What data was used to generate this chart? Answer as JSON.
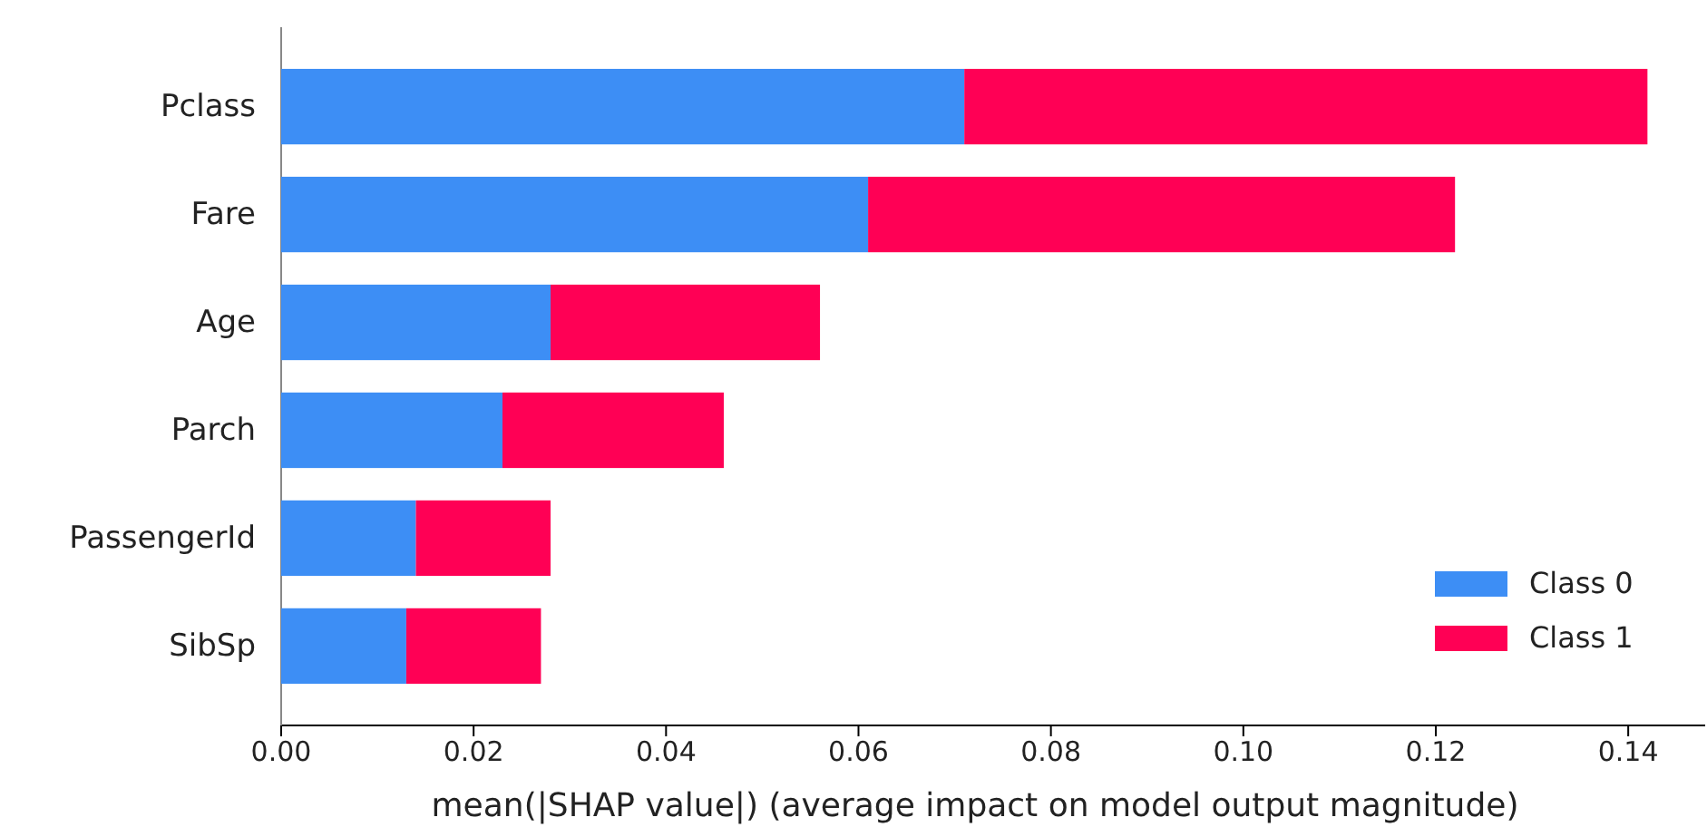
{
  "chart_data": {
    "type": "bar",
    "orientation": "horizontal",
    "stacked": true,
    "xlabel": "mean(|SHAP value|) (average impact on model output magnitude)",
    "categories": [
      "Pclass",
      "Fare",
      "Age",
      "Parch",
      "PassengerId",
      "SibSp"
    ],
    "series": [
      {
        "name": "Class 0",
        "color": "#3d8ef5",
        "values": [
          0.071,
          0.061,
          0.028,
          0.023,
          0.014,
          0.013
        ]
      },
      {
        "name": "Class 1",
        "color": "#ff0055",
        "values": [
          0.071,
          0.061,
          0.028,
          0.023,
          0.014,
          0.014
        ]
      }
    ],
    "xlim": [
      0,
      0.148
    ],
    "xticks": [
      {
        "value": 0,
        "label": "0.00"
      },
      {
        "value": 0.02,
        "label": "0.02"
      },
      {
        "value": 0.04,
        "label": "0.04"
      },
      {
        "value": 0.06,
        "label": "0.06"
      },
      {
        "value": 0.08,
        "label": "0.08"
      },
      {
        "value": 0.1,
        "label": "0.10"
      },
      {
        "value": 0.12,
        "label": "0.12"
      },
      {
        "value": 0.14,
        "label": "0.14"
      }
    ],
    "legend": "bottom right",
    "grid": false
  }
}
